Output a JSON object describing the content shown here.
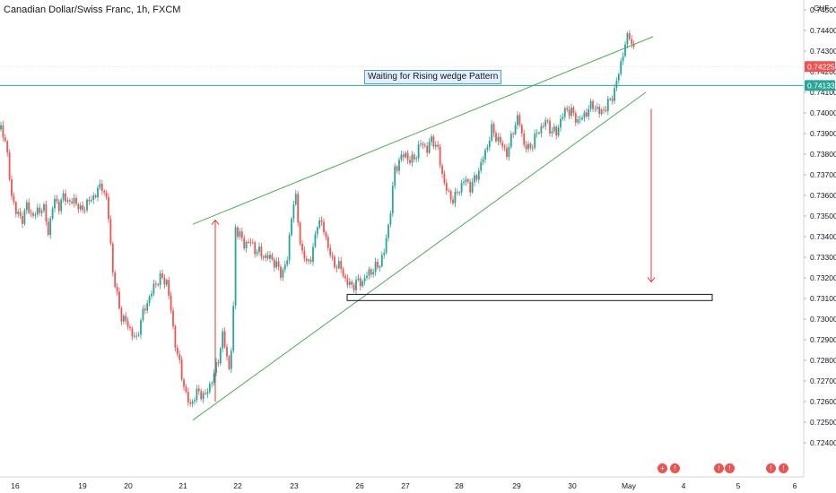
{
  "header": {
    "title": "Canadian Dollar/Swiss Franc, 1h, FXCM"
  },
  "annotation": {
    "wedge_label": "Waiting for Rising wedge Pattern"
  },
  "axis": {
    "currency": "CHF"
  },
  "price_tags": {
    "last_price": "0.74225",
    "line_price": "0.74133"
  },
  "colors": {
    "up": "#26a69a",
    "down": "#ef5350",
    "wedge": "#4caf50",
    "arrow": "#e53935",
    "hline": "#26a69a",
    "last_tag": "#ef5350"
  },
  "chart_data": {
    "type": "candlestick",
    "title": "Canadian Dollar/Swiss Franc, 1h, FXCM",
    "ylabel": "CHF",
    "ylim": [
      0.7245,
      0.7458
    ],
    "y_ticks": [
      "0.74500",
      "0.74400",
      "0.74300",
      "0.74200",
      "0.74100",
      "0.74000",
      "0.73900",
      "0.73800",
      "0.73700",
      "0.73600",
      "0.73500",
      "0.73400",
      "0.73300",
      "0.73200",
      "0.73100",
      "0.73000",
      "0.72900",
      "0.72800",
      "0.72700",
      "0.72600",
      "0.72500",
      "0.72400"
    ],
    "x_ticks": [
      "16",
      "19",
      "20",
      "21",
      "22",
      "23",
      "26",
      "27",
      "28",
      "29",
      "30",
      "May",
      "4",
      "5",
      "6"
    ],
    "close_path": [
      [
        0,
        0.7392
      ],
      [
        6,
        0.7388
      ],
      [
        12,
        0.7362
      ],
      [
        18,
        0.7352
      ],
      [
        24,
        0.7348
      ],
      [
        30,
        0.7355
      ],
      [
        36,
        0.735
      ],
      [
        42,
        0.7352
      ],
      [
        48,
        0.7355
      ],
      [
        54,
        0.7342
      ],
      [
        60,
        0.7358
      ],
      [
        66,
        0.7355
      ],
      [
        72,
        0.736
      ],
      [
        78,
        0.7356
      ],
      [
        84,
        0.7358
      ],
      [
        90,
        0.7352
      ],
      [
        96,
        0.7356
      ],
      [
        102,
        0.7358
      ],
      [
        108,
        0.7362
      ],
      [
        114,
        0.7365
      ],
      [
        120,
        0.7355
      ],
      [
        126,
        0.7322
      ],
      [
        130,
        0.7312
      ],
      [
        136,
        0.73
      ],
      [
        142,
        0.7298
      ],
      [
        148,
        0.7292
      ],
      [
        152,
        0.729
      ],
      [
        156,
        0.7298
      ],
      [
        162,
        0.7306
      ],
      [
        168,
        0.7312
      ],
      [
        174,
        0.7318
      ],
      [
        180,
        0.732
      ],
      [
        186,
        0.7318
      ],
      [
        190,
        0.7306
      ],
      [
        194,
        0.7292
      ],
      [
        198,
        0.7282
      ],
      [
        204,
        0.727
      ],
      [
        208,
        0.7262
      ],
      [
        212,
        0.7258
      ],
      [
        216,
        0.7262
      ],
      [
        222,
        0.7265
      ],
      [
        228,
        0.7262
      ],
      [
        234,
        0.7268
      ],
      [
        240,
        0.7275
      ],
      [
        244,
        0.7282
      ],
      [
        248,
        0.7292
      ],
      [
        252,
        0.7285
      ],
      [
        256,
        0.7274
      ],
      [
        260,
        0.73
      ],
      [
        262,
        0.7345
      ],
      [
        266,
        0.7342
      ],
      [
        272,
        0.7336
      ],
      [
        278,
        0.7338
      ],
      [
        284,
        0.7334
      ],
      [
        290,
        0.7332
      ],
      [
        296,
        0.733
      ],
      [
        302,
        0.733
      ],
      [
        308,
        0.7326
      ],
      [
        314,
        0.7322
      ],
      [
        320,
        0.7328
      ],
      [
        326,
        0.7355
      ],
      [
        330,
        0.7358
      ],
      [
        336,
        0.7332
      ],
      [
        342,
        0.7328
      ],
      [
        348,
        0.733
      ],
      [
        354,
        0.7348
      ],
      [
        360,
        0.7345
      ],
      [
        366,
        0.7335
      ],
      [
        370,
        0.7328
      ],
      [
        376,
        0.7326
      ],
      [
        380,
        0.7325
      ],
      [
        386,
        0.7318
      ],
      [
        392,
        0.7316
      ],
      [
        398,
        0.7318
      ],
      [
        404,
        0.7318
      ],
      [
        410,
        0.7322
      ],
      [
        416,
        0.7324
      ],
      [
        422,
        0.7326
      ],
      [
        428,
        0.7332
      ],
      [
        434,
        0.7348
      ],
      [
        440,
        0.7372
      ],
      [
        446,
        0.7378
      ],
      [
        452,
        0.738
      ],
      [
        458,
        0.7376
      ],
      [
        464,
        0.738
      ],
      [
        470,
        0.7386
      ],
      [
        476,
        0.7382
      ],
      [
        482,
        0.7388
      ],
      [
        488,
        0.7382
      ],
      [
        494,
        0.7368
      ],
      [
        500,
        0.736
      ],
      [
        506,
        0.7358
      ],
      [
        512,
        0.7363
      ],
      [
        518,
        0.7368
      ],
      [
        524,
        0.7364
      ],
      [
        530,
        0.7368
      ],
      [
        536,
        0.7375
      ],
      [
        542,
        0.7382
      ],
      [
        548,
        0.7392
      ],
      [
        554,
        0.7388
      ],
      [
        560,
        0.7384
      ],
      [
        566,
        0.738
      ],
      [
        572,
        0.7392
      ],
      [
        578,
        0.7398
      ],
      [
        584,
        0.7385
      ],
      [
        590,
        0.7382
      ],
      [
        596,
        0.7388
      ],
      [
        602,
        0.7392
      ],
      [
        608,
        0.7396
      ],
      [
        614,
        0.7392
      ],
      [
        620,
        0.739
      ],
      [
        626,
        0.7398
      ],
      [
        632,
        0.7402
      ],
      [
        638,
        0.74
      ],
      [
        644,
        0.7396
      ],
      [
        650,
        0.7398
      ],
      [
        656,
        0.7402
      ],
      [
        662,
        0.7404
      ],
      [
        668,
        0.74
      ],
      [
        674,
        0.7402
      ],
      [
        680,
        0.7406
      ],
      [
        686,
        0.7412
      ],
      [
        690,
        0.742
      ],
      [
        694,
        0.7428
      ],
      [
        698,
        0.7435
      ],
      [
        702,
        0.7438
      ],
      [
        706,
        0.7432
      ],
      [
        708,
        0.7425
      ]
    ],
    "wedge_upper": [
      [
        215,
        0.7346
      ],
      [
        728,
        0.7437
      ]
    ],
    "wedge_lower": [
      [
        215,
        0.7251
      ],
      [
        720,
        0.741
      ]
    ],
    "horizontal_line": 0.74133,
    "last_price": 0.74225,
    "target_box": {
      "x_from": 387,
      "x_to": 794,
      "y_high": 0.7312,
      "y_low": 0.7309
    },
    "arrow_up": {
      "x": 240,
      "y_from": 0.726,
      "y_to": 0.7348
    },
    "arrow_down": {
      "x": 726,
      "y_from": 0.7402,
      "y_to": 0.7318
    }
  }
}
